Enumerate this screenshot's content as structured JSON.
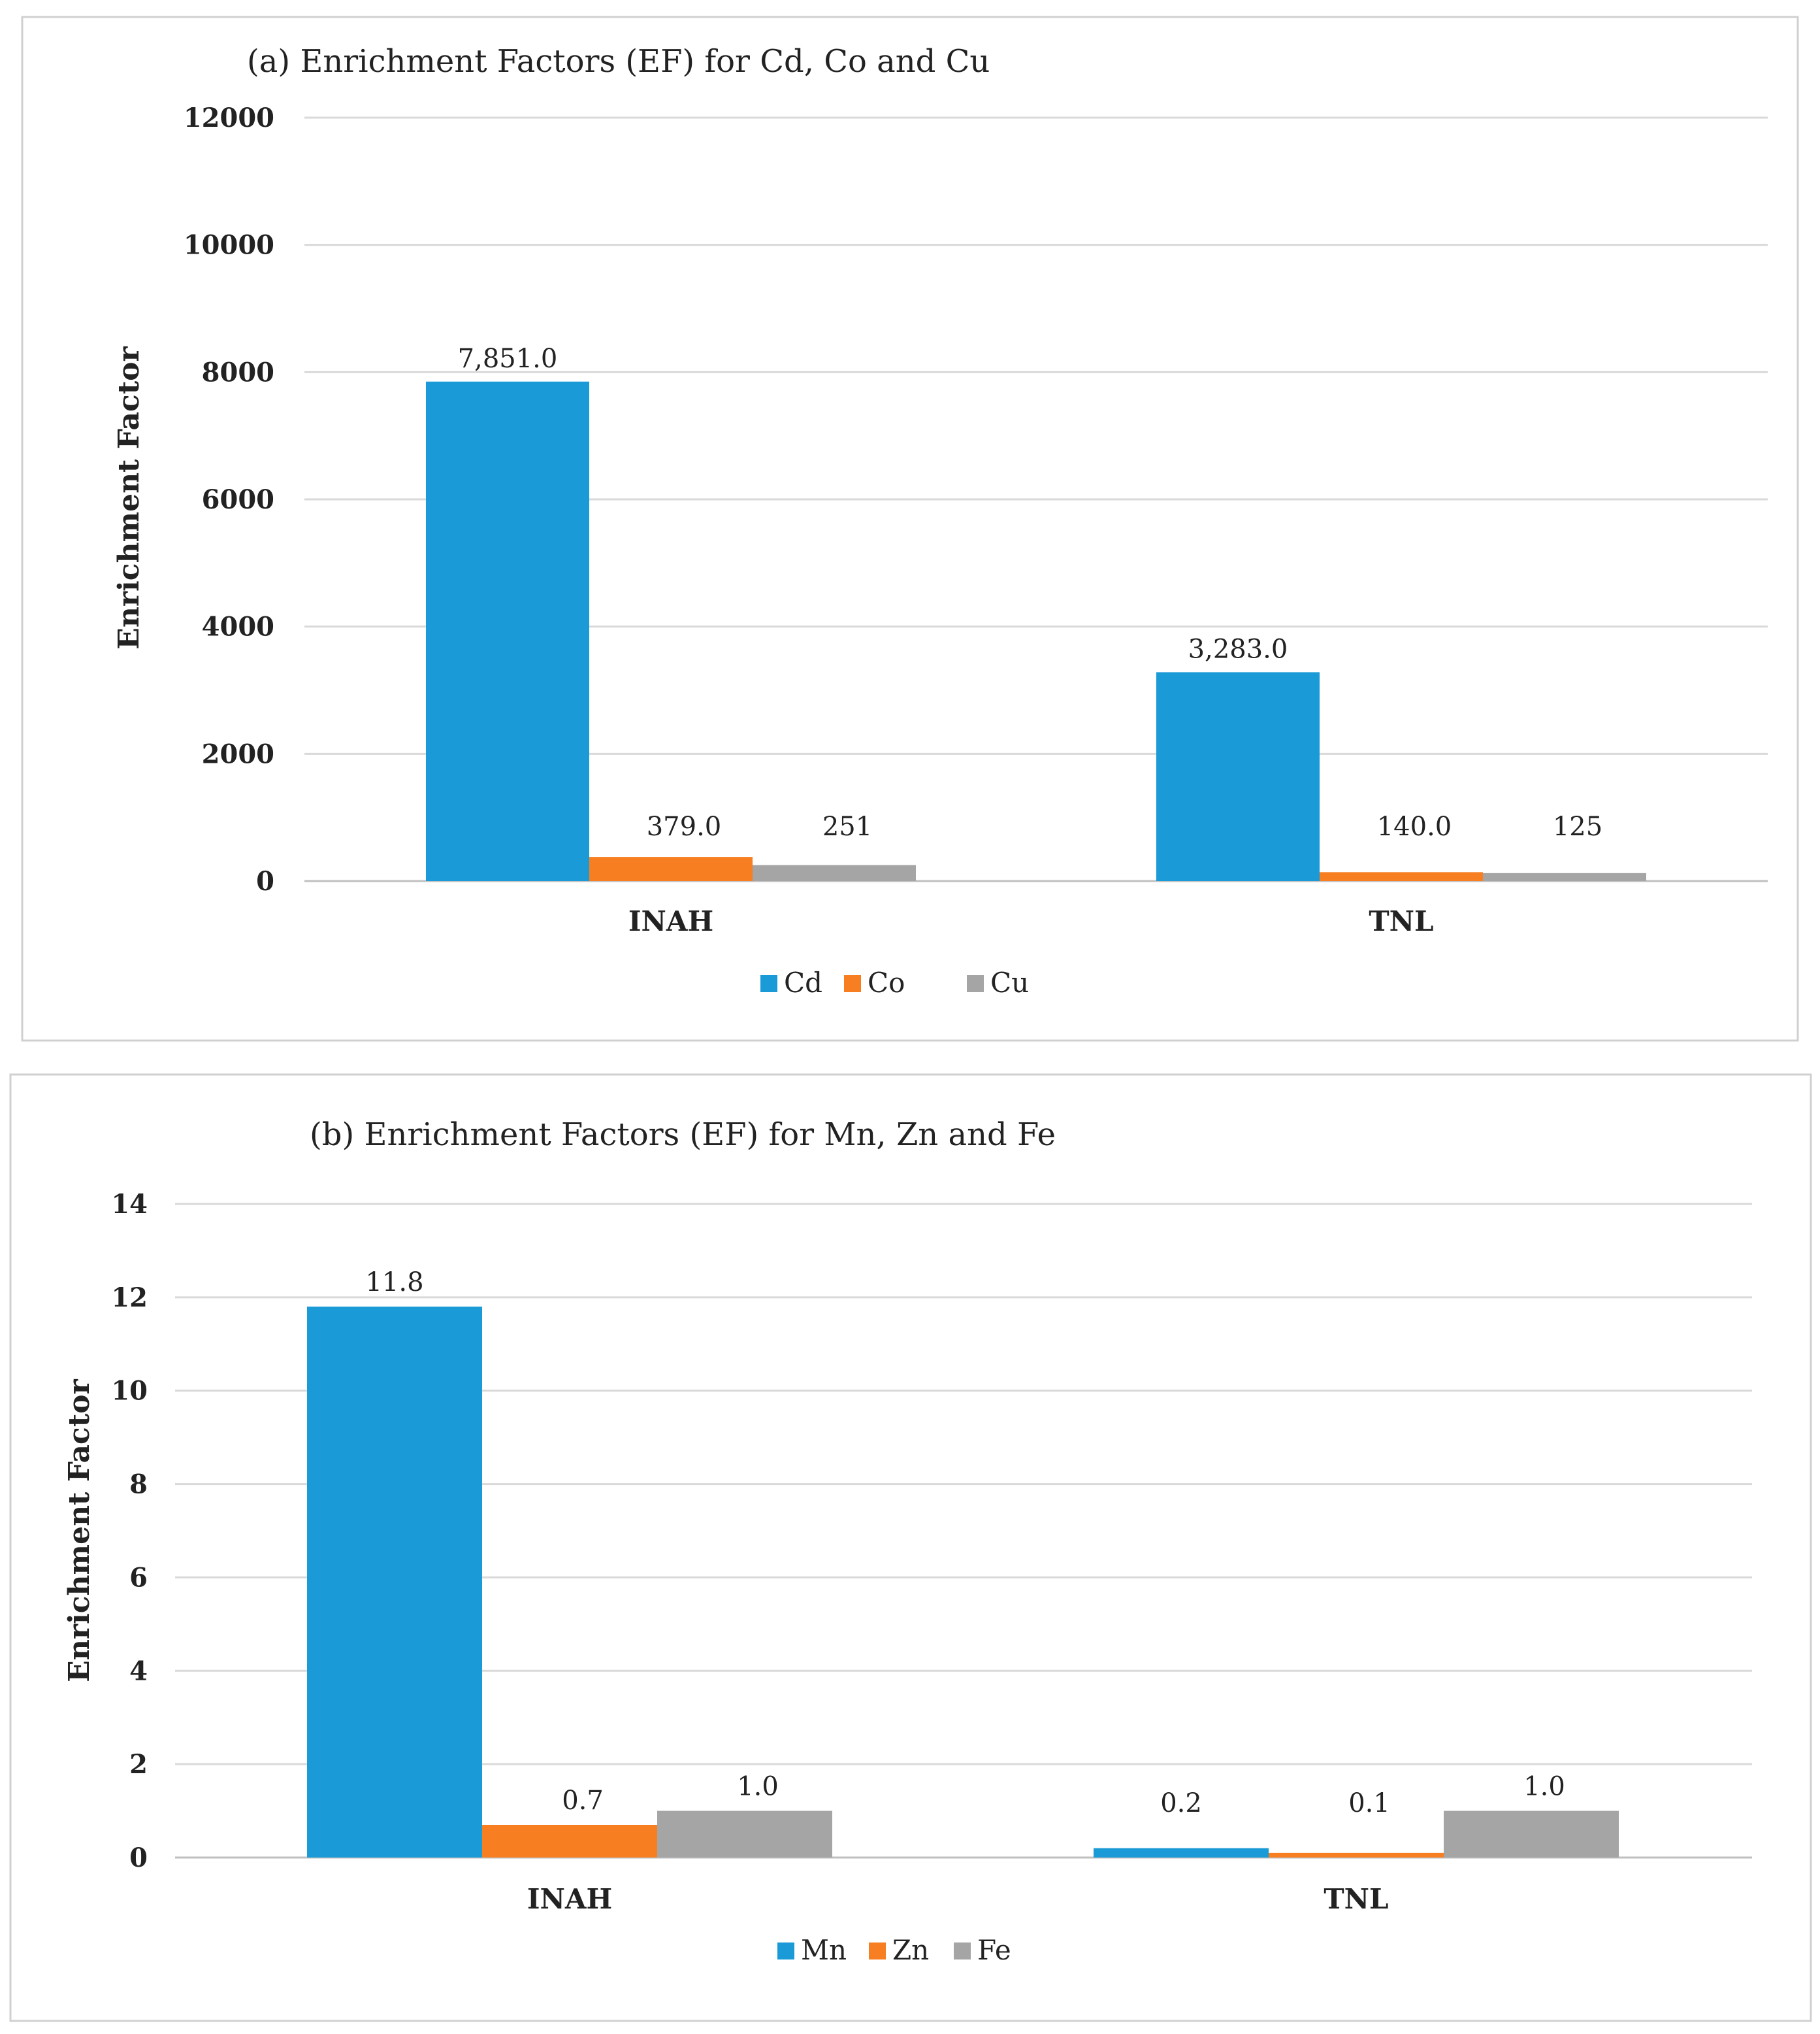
{
  "colors": {
    "s0": "#1a9bd7",
    "s1": "#f77f22",
    "s2": "#a5a5a5"
  },
  "chart_data": [
    {
      "type": "bar",
      "title": "(a) Enrichment Factors (EF) for Cd,  Co and Cu",
      "xlabel": "",
      "ylabel": "Enrichment Factor",
      "ylim": [
        0,
        12000
      ],
      "yticks": [
        0,
        2000,
        4000,
        6000,
        8000,
        10000,
        12000
      ],
      "ytick_labels": [
        "0",
        "2000",
        "4000",
        "6000",
        "8000",
        "10000",
        "12000"
      ],
      "categories": [
        "INAH",
        "TNL"
      ],
      "series": [
        {
          "name": "Cd",
          "values": [
            7851.0,
            3283.0
          ],
          "labels": [
            "7,851.0",
            "3,283.0"
          ]
        },
        {
          "name": "Co",
          "values": [
            379.0,
            140.0
          ],
          "labels": [
            "379.0",
            "140.0"
          ]
        },
        {
          "name": "Cu",
          "values": [
            251,
            125
          ],
          "labels": [
            "251",
            "125"
          ]
        }
      ],
      "legend": "bottom-center",
      "grid": true
    },
    {
      "type": "bar",
      "title": "(b) Enrichment Factors (EF) for Mn, Zn and  Fe",
      "xlabel": "",
      "ylabel": "Enrichment Factor",
      "ylim": [
        0,
        14
      ],
      "yticks": [
        0,
        2,
        4,
        6,
        8,
        10,
        12,
        14
      ],
      "ytick_labels": [
        "0",
        "2",
        "4",
        "6",
        "8",
        "10",
        "12",
        "14"
      ],
      "categories": [
        "INAH",
        "TNL"
      ],
      "series": [
        {
          "name": "Mn",
          "values": [
            11.8,
            0.2
          ],
          "labels": [
            "11.8",
            "0.2"
          ]
        },
        {
          "name": "Zn",
          "values": [
            0.7,
            0.1
          ],
          "labels": [
            "0.7",
            "0.1"
          ]
        },
        {
          "name": "Fe",
          "values": [
            1.0,
            1.0
          ],
          "labels": [
            "1.0",
            "1.0"
          ]
        }
      ],
      "legend": "bottom-center",
      "grid": true
    }
  ]
}
